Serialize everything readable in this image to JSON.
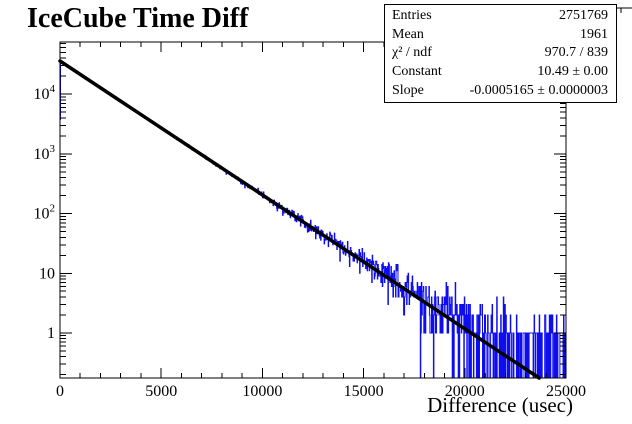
{
  "colors": {
    "background": "#ffffff",
    "histogram": "#0d0df0",
    "fit_line": "#000000",
    "frame": "#000000",
    "text": "#000000"
  },
  "stats": {
    "rows": [
      {
        "label": "Entries",
        "value": "2751769"
      },
      {
        "label": "Mean",
        "value": "1961"
      },
      {
        "label": "χ² / ndf",
        "value": "970.7 / 839"
      },
      {
        "label": "Constant",
        "value": "10.49 ± 0.00"
      },
      {
        "label": "Slope",
        "value": "-0.0005165 ± 0.0000003"
      }
    ]
  },
  "chart_data": {
    "type": "bar",
    "subtype": "histogram-log-y",
    "title": "IceCube Time Diff",
    "xlabel": "Difference (usec)",
    "ylabel": "",
    "x_range": [
      0,
      25000
    ],
    "x_major_ticks": [
      0,
      5000,
      10000,
      15000,
      20000,
      25000
    ],
    "x_major_tick_labels": [
      "0",
      "5000",
      "10000",
      "15000",
      "20000",
      "25000"
    ],
    "x_minor_step": 1000,
    "y_scale": "log",
    "y_range": [
      0.176,
      74800
    ],
    "y_major_ticks": [
      1,
      10,
      100,
      1000,
      10000
    ],
    "y_tick_labels": [
      {
        "base": "1",
        "exp": ""
      },
      {
        "base": "10",
        "exp": ""
      },
      {
        "base": "10",
        "exp": "2"
      },
      {
        "base": "10",
        "exp": "3"
      },
      {
        "base": "10",
        "exp": "4"
      }
    ],
    "grid": false,
    "legend": "none",
    "fit": {
      "model": "exp(constant + slope*x)",
      "constant": 10.49,
      "slope": -0.0005165,
      "chi2": 970.7,
      "ndf": 839
    },
    "entries": 2751769,
    "mean": 1961,
    "histogram_model": {
      "description": "exponential decay histogram, Poisson bin noise around fit plus flat background tail",
      "bins": 1000,
      "bin_width_usec": 25,
      "peak_bin_content": 36200,
      "first_bin_value": 3800,
      "background_per_bin": 0.55,
      "noise": "poisson",
      "seed": 987654321
    }
  }
}
